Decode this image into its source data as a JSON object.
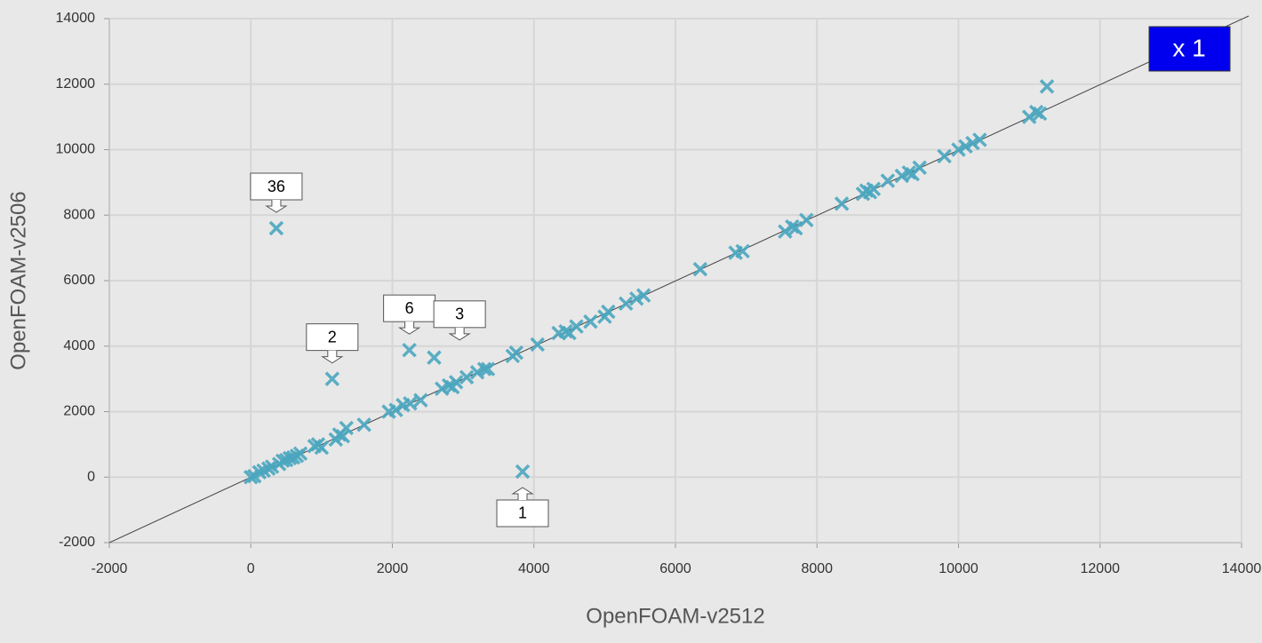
{
  "chart_data": {
    "type": "scatter",
    "x_label": "OpenFOAM-v2512",
    "y_label": "OpenFOAM-v2506",
    "badge": "x 1",
    "color": "#4aa6bf",
    "diagonal": true,
    "grid": true,
    "xlim": [
      -2000,
      14000
    ],
    "ylim": [
      -2000,
      14000
    ],
    "xticks": [
      -2000,
      0,
      2000,
      4000,
      6000,
      8000,
      10000,
      12000,
      14000
    ],
    "yticks": [
      -2000,
      0,
      2000,
      4000,
      6000,
      8000,
      10000,
      12000,
      14000
    ],
    "x": [
      0,
      50,
      120,
      180,
      250,
      300,
      400,
      450,
      500,
      550,
      600,
      650,
      700,
      900,
      950,
      1000,
      1200,
      1250,
      1300,
      1350,
      1600,
      1950,
      2050,
      2150,
      2250,
      2400,
      2700,
      2800,
      2850,
      2900,
      3050,
      3200,
      3300,
      3350,
      3700,
      3750,
      4050,
      4350,
      4450,
      4500,
      4600,
      4800,
      5000,
      5050,
      5300,
      5450,
      5550,
      6350,
      6850,
      6950,
      7550,
      7650,
      7700,
      7850,
      8350,
      8650,
      8700,
      8750,
      8800,
      9000,
      9200,
      9300,
      9350,
      9450,
      9800,
      10000,
      10100,
      10200,
      10300,
      11000,
      11100,
      11150,
      360,
      1150,
      2240,
      2590,
      3840,
      11250
    ],
    "values": [
      0,
      30,
      150,
      200,
      260,
      320,
      400,
      500,
      520,
      580,
      600,
      650,
      720,
      950,
      1000,
      900,
      1150,
      1300,
      1250,
      1500,
      1600,
      2000,
      2050,
      2200,
      2250,
      2350,
      2700,
      2800,
      2750,
      2900,
      3050,
      3200,
      3300,
      3300,
      3700,
      3800,
      4050,
      4400,
      4450,
      4400,
      4600,
      4750,
      4900,
      5050,
      5300,
      5450,
      5550,
      6350,
      6850,
      6900,
      7500,
      7650,
      7600,
      7850,
      8350,
      8650,
      8750,
      8700,
      8800,
      9050,
      9200,
      9300,
      9250,
      9450,
      9800,
      10000,
      10100,
      10200,
      10300,
      11000,
      11150,
      11100,
      7600,
      3000,
      3880,
      3650,
      170,
      11930
    ],
    "annotations": [
      {
        "text": "36",
        "x": 360,
        "y": 7600,
        "side": "above"
      },
      {
        "text": "2",
        "x": 1150,
        "y": 3000,
        "side": "above"
      },
      {
        "text": "6",
        "x": 2240,
        "y": 3880,
        "side": "above"
      },
      {
        "text": "3",
        "x": 2950,
        "y": 3700,
        "side": "above"
      },
      {
        "text": "1",
        "x": 3840,
        "y": 170,
        "side": "below"
      }
    ]
  }
}
